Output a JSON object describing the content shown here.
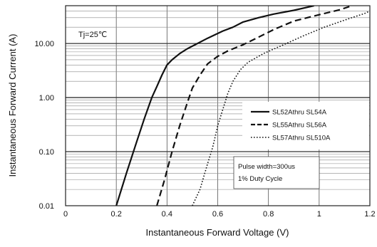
{
  "chart_data": {
    "type": "line",
    "title": "",
    "xlabel": "Instantaneous Forward Voltage (V)",
    "ylabel": "Instantaneous Forward Current (A)",
    "x_scale": "linear",
    "y_scale": "log",
    "xlim": [
      0,
      1.2
    ],
    "ylim": [
      0.01,
      50
    ],
    "x_ticks": [
      "0",
      "0.2",
      "0.4",
      "0.6",
      "0.8",
      "1",
      "1.2"
    ],
    "y_ticks": [
      "0.01",
      "0.10",
      "1.00",
      "10.00"
    ],
    "grid": true,
    "annotation": "Tj=25℃",
    "note_lines": [
      "Pulse width=300us",
      "1% Duty Cycle"
    ],
    "legend_position": "right",
    "series": [
      {
        "name": "SL52Athru SL54A",
        "style": "solid",
        "x": [
          0.2,
          0.24,
          0.28,
          0.31,
          0.34,
          0.36,
          0.38,
          0.4,
          0.42,
          0.45,
          0.48,
          0.52,
          0.56,
          0.62,
          0.66,
          0.7,
          0.76,
          0.82,
          0.9,
          0.98
        ],
        "y": [
          0.01,
          0.04,
          0.15,
          0.4,
          1.0,
          1.6,
          2.6,
          4.0,
          5.0,
          6.5,
          8.0,
          10.0,
          12.5,
          17.0,
          20.0,
          25.0,
          30.0,
          35.0,
          41.0,
          50.0
        ]
      },
      {
        "name": "SL55Athru SL56A",
        "style": "dashed",
        "x": [
          0.36,
          0.39,
          0.42,
          0.45,
          0.48,
          0.5,
          0.53,
          0.56,
          0.6,
          0.64,
          0.7,
          0.76,
          0.82,
          0.9,
          1.0,
          1.08,
          1.13
        ],
        "y": [
          0.01,
          0.03,
          0.1,
          0.3,
          0.8,
          1.5,
          2.6,
          4.2,
          5.8,
          7.3,
          9.5,
          13.0,
          18.0,
          26.0,
          34.0,
          42.0,
          50.0
        ]
      },
      {
        "name": "SL57Athru SL510A",
        "style": "dotted",
        "x": [
          0.5,
          0.53,
          0.56,
          0.58,
          0.6,
          0.62,
          0.64,
          0.66,
          0.69,
          0.72,
          0.78,
          0.86,
          0.94,
          1.02,
          1.1,
          1.18,
          1.2
        ],
        "y": [
          0.01,
          0.02,
          0.06,
          0.12,
          0.3,
          0.6,
          1.2,
          2.0,
          3.3,
          4.5,
          6.5,
          9.5,
          14.0,
          20.0,
          27.0,
          36.0,
          40.0
        ]
      }
    ]
  }
}
